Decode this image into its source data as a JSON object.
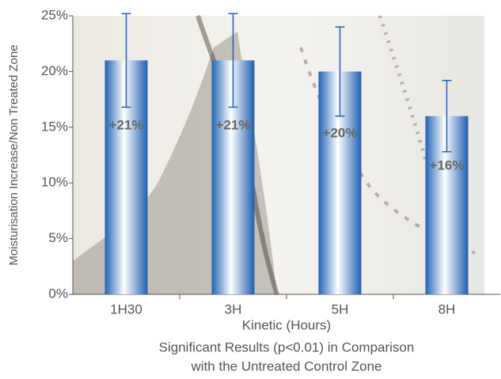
{
  "chart_data": {
    "type": "bar",
    "y_label": "Moisturisation Increase/Non Treated Zone",
    "x_label": "Kinetic (Hours)",
    "annotations": [
      "Significant Results  (p<0.01) in Comparison",
      "with the Untreated Control Zone"
    ],
    "categories": [
      "1H30",
      "3H",
      "5H",
      "8H"
    ],
    "values": [
      21,
      21,
      20,
      16
    ],
    "value_labels": [
      "+21%",
      "+21%",
      "+20%",
      "+16%"
    ],
    "errors": [
      4.2,
      4.2,
      4,
      3.2
    ],
    "color": "#1f63b5",
    "ylim": [
      0,
      25
    ],
    "yticks": [
      {
        "value": 0,
        "label": "0%"
      },
      {
        "value": 5,
        "label": "5%"
      },
      {
        "value": 10,
        "label": "10%"
      },
      {
        "value": 15,
        "label": "15%"
      },
      {
        "value": 20,
        "label": "20%"
      },
      {
        "value": 25,
        "label": "25%"
      }
    ]
  }
}
